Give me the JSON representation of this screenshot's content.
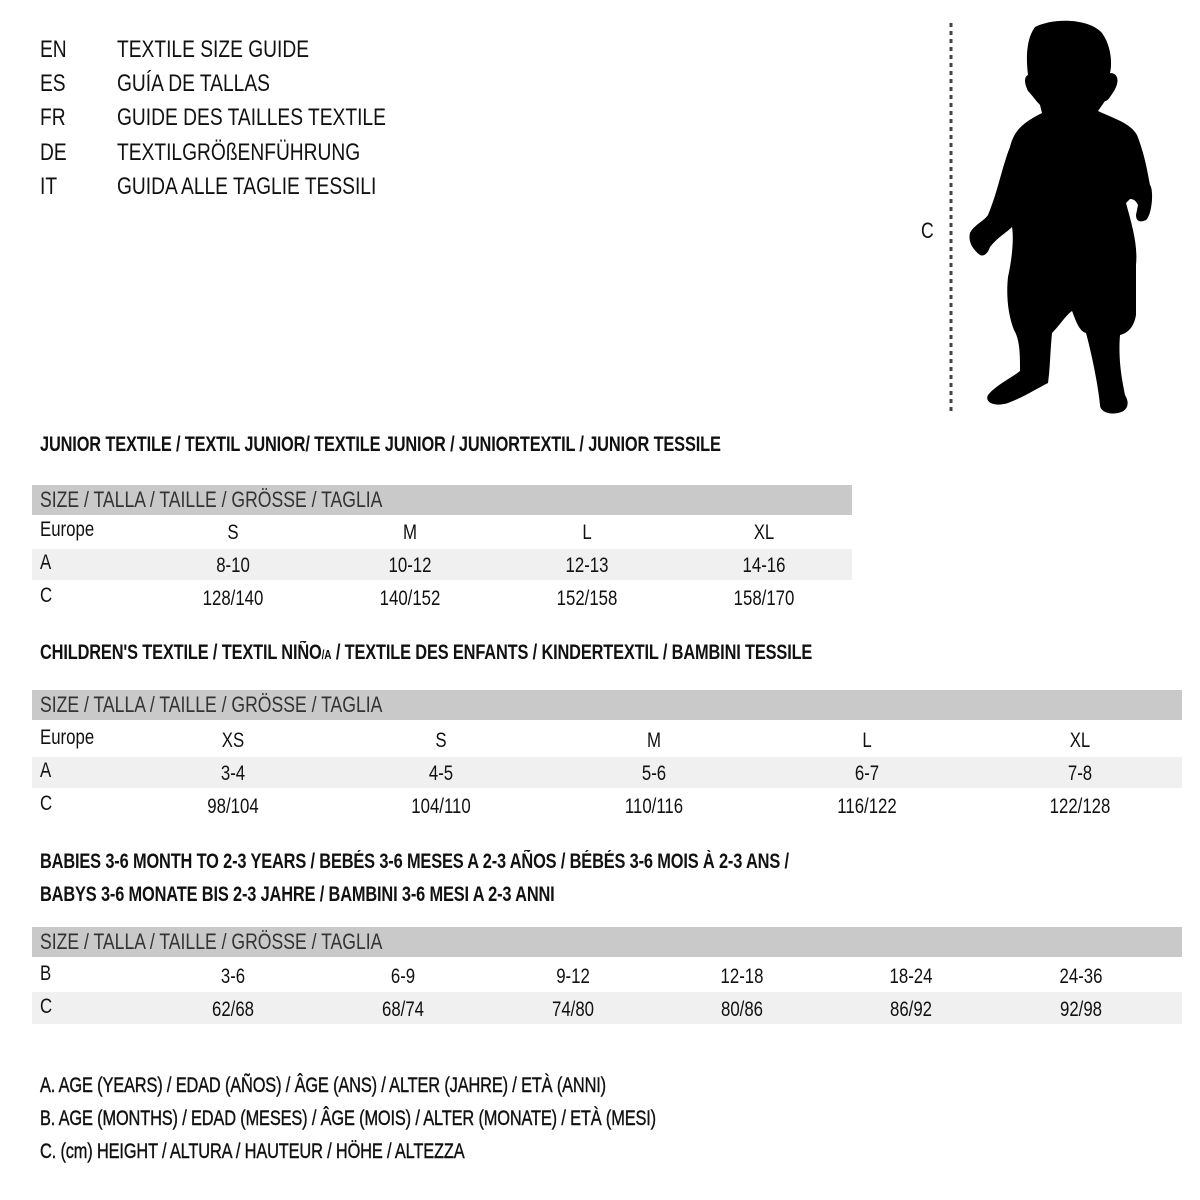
{
  "titles": [
    {
      "lang": "EN",
      "text": "TEXTILE SIZE GUIDE"
    },
    {
      "lang": "ES",
      "text": "GUÍA DE TALLAS"
    },
    {
      "lang": "FR",
      "text": "GUIDE DES TAILLES TEXTILE"
    },
    {
      "lang": "DE",
      "text": "TEXTILGRÖßENFÜHRUNG"
    },
    {
      "lang": "IT",
      "text": "GUIDA ALLE TAGLIE TESSILI"
    }
  ],
  "figure": {
    "measure_label": "C",
    "icon": "child-silhouette"
  },
  "colors": {
    "header_bar": "#c9c9c9",
    "row_band": "#f0f0f0"
  },
  "junior": {
    "heading": "JUNIOR TEXTILE / TEXTIL JUNIOR/ TEXTILE JUNIOR / JUNIORTEXTIL / JUNIOR TESSILE",
    "header": "SIZE / TALLA / TAILLE / GRÖSSE / TAGLIA",
    "rows": [
      {
        "label": "Europe",
        "values": [
          "S",
          "M",
          "L",
          "XL"
        ]
      },
      {
        "label": "A",
        "values": [
          "8-10",
          "10-12",
          "12-13",
          "14-16"
        ]
      },
      {
        "label": "C",
        "values": [
          "128/140",
          "140/152",
          "152/158",
          "158/170"
        ]
      }
    ]
  },
  "children": {
    "heading": "CHILDREN'S TEXTILE / TEXTIL NIÑO",
    "heading_sub": "/A",
    "heading_rest": " / TEXTILE DES ENFANTS / KINDERTEXTIL / BAMBINI TESSILE",
    "header": "SIZE / TALLA / TAILLE / GRÖSSE / TAGLIA",
    "rows": [
      {
        "label": "Europe",
        "values": [
          "XS",
          "S",
          "M",
          "L",
          "XL"
        ]
      },
      {
        "label": "A",
        "values": [
          "3-4",
          "4-5",
          "5-6",
          "6-7",
          "7-8"
        ]
      },
      {
        "label": "C",
        "values": [
          "98/104",
          "104/110",
          "110/116",
          "116/122",
          "122/128"
        ]
      }
    ]
  },
  "babies": {
    "heading_line1": "BABIES 3-6 MONTH TO 2-3 YEARS / BEBÉS 3-6 MESES A 2-3 AÑOS / BÉBÉS 3-6 MOIS À 2-3 ANS /",
    "heading_line2": "BABYS 3-6 MONATE BIS 2-3 JAHRE / BAMBINI 3-6 MESI A 2-3 ANNI",
    "header": "SIZE / TALLA / TAILLE / GRÖSSE / TAGLIA",
    "rows": [
      {
        "label": "B",
        "values": [
          "3-6",
          "6-9",
          "9-12",
          "12-18",
          "18-24",
          "24-36"
        ]
      },
      {
        "label": "C",
        "values": [
          "62/68",
          "68/74",
          "74/80",
          "80/86",
          "86/92",
          "92/98"
        ]
      }
    ]
  },
  "legend": [
    "A. AGE (YEARS) / EDAD (AÑOS) / ÂGE (ANS) / ALTER (JAHRE) / ETÀ (ANNI)",
    "B. AGE (MONTHS) / EDAD (MESES) / ÂGE (MOIS) / ALTER (MONATE) / ETÀ (MESI)",
    "C. (cm) HEIGHT / ALTURA / HAUTEUR / HÖHE / ALTEZZA"
  ]
}
